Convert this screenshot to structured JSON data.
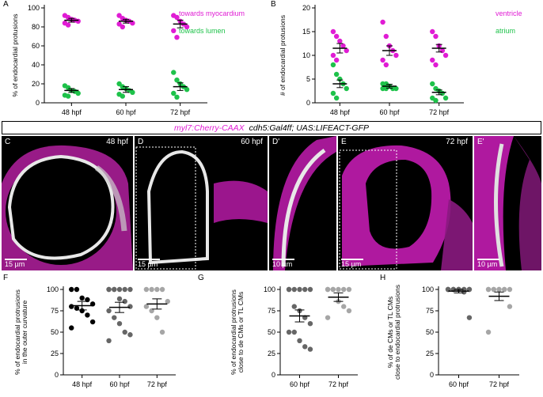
{
  "colors": {
    "magenta": "#e01cd4",
    "green": "#1ec24a",
    "black": "#000000",
    "dark_gray": "#666666",
    "light_gray": "#a6a6a6"
  },
  "microscopy": {
    "legend": {
      "part1": "myl7:Cherry-CAAX",
      "part2": "cdh5:Gal4ff; UAS:LIFEACT-GFP"
    },
    "panels": [
      {
        "label": "C",
        "time": "48 hpf",
        "scale": "15 µm"
      },
      {
        "label": "D",
        "time": "60 hpf",
        "scale": "15 µm"
      },
      {
        "label": "D'",
        "time": "",
        "scale": "10 µm"
      },
      {
        "label": "E",
        "time": "72 hpf",
        "scale": "15 µm"
      },
      {
        "label": "E'",
        "time": "",
        "scale": "10 µm"
      }
    ]
  },
  "chart_data": [
    {
      "panel": "A",
      "type": "scatter",
      "ylabel": "% of endocardial protusions",
      "ylim": [
        0,
        100
      ],
      "yticks": [
        0,
        20,
        40,
        60,
        80,
        100
      ],
      "categories": [
        "48 hpf",
        "60 hpf",
        "72 hpf"
      ],
      "legend_position": "top-right",
      "series": [
        {
          "name": "towards myocardium",
          "color": "#e01cd4",
          "mean": [
            87,
            86,
            83
          ],
          "sem": [
            2,
            2,
            4
          ],
          "points": [
            [
              92,
              90,
              88,
              87,
              86,
              84,
              82
            ],
            [
              92,
              89,
              87,
              86,
              84,
              83,
              80
            ],
            [
              92,
              90,
              86,
              83,
              80,
              76,
              69
            ]
          ]
        },
        {
          "name": "towards lumen",
          "color": "#1ec24a",
          "mean": [
            13,
            14,
            17
          ],
          "sem": [
            2,
            3,
            4
          ],
          "points": [
            [
              18,
              16,
              13,
              12,
              10,
              8,
              7
            ],
            [
              20,
              17,
              15,
              13,
              11,
              9,
              7
            ],
            [
              32,
              24,
              20,
              17,
              14,
              10,
              6
            ]
          ]
        }
      ]
    },
    {
      "panel": "B",
      "type": "scatter",
      "ylabel": "# of endocardial protusions",
      "ylim": [
        0,
        20
      ],
      "yticks": [
        0,
        5,
        10,
        15,
        20
      ],
      "categories": [
        "48 hpf",
        "60 hpf",
        "72 hpf"
      ],
      "legend_position": "top-right",
      "series": [
        {
          "name": "ventricle",
          "color": "#e01cd4",
          "mean": [
            11.5,
            11,
            11.5
          ],
          "sem": [
            1,
            1,
            0.8
          ],
          "points": [
            [
              15,
              14,
              13,
              12,
              11,
              10,
              9
            ],
            [
              17,
              14,
              12,
              11,
              10,
              9,
              8
            ],
            [
              15,
              14,
              12,
              11,
              10,
              9,
              8
            ]
          ]
        },
        {
          "name": "atrium",
          "color": "#1ec24a",
          "mean": [
            4,
            3.5,
            2.2
          ],
          "sem": [
            0.8,
            0.4,
            0.5
          ],
          "points": [
            [
              8,
              6,
              5,
              4,
              3,
              2,
              1
            ],
            [
              4,
              4,
              3.5,
              3,
              3,
              3,
              3
            ],
            [
              4,
              3,
              2.5,
              2,
              1,
              1,
              0.5
            ]
          ]
        }
      ]
    },
    {
      "panel": "F",
      "type": "scatter",
      "ylabel": "% of endocardial protrusions in the outer curvature",
      "ylim": [
        0,
        100
      ],
      "yticks": [
        0,
        25,
        50,
        75,
        100
      ],
      "categories": [
        "48 hpf",
        "60 hpf",
        "72 hpf"
      ],
      "colors": [
        "#000000",
        "#666666",
        "#a6a6a6"
      ],
      "mean": [
        81,
        79,
        83
      ],
      "sem": [
        5,
        6,
        6
      ],
      "points": [
        [
          100,
          100,
          90,
          88,
          83,
          80,
          78,
          75,
          70,
          62,
          55
        ],
        [
          100,
          100,
          100,
          100,
          100,
          100,
          100,
          89,
          86,
          80,
          75,
          67,
          60,
          50,
          47,
          40
        ],
        [
          100,
          100,
          100,
          100,
          86,
          80,
          75,
          67,
          50
        ]
      ]
    },
    {
      "panel": "G",
      "type": "scatter",
      "ylabel": "% of endocardial protrusions close to de CMs or TL CMs",
      "ylim": [
        0,
        100
      ],
      "yticks": [
        0,
        25,
        50,
        75,
        100
      ],
      "categories": [
        "60 hpf",
        "72 hpf"
      ],
      "colors": [
        "#666666",
        "#a6a6a6"
      ],
      "mean": [
        69,
        91
      ],
      "sem": [
        7,
        5
      ],
      "points": [
        [
          100,
          100,
          100,
          100,
          100,
          100,
          80,
          75,
          67,
          60,
          50,
          50,
          40,
          33,
          30
        ],
        [
          100,
          100,
          100,
          100,
          100,
          100,
          100,
          86,
          80,
          75,
          67
        ]
      ]
    },
    {
      "panel": "H",
      "type": "scatter",
      "ylabel": "% of de CMs or TL CMs close to endocardial protrusions",
      "ylim": [
        0,
        100
      ],
      "yticks": [
        0,
        25,
        50,
        75,
        100
      ],
      "categories": [
        "60 hpf",
        "72 hpf"
      ],
      "colors": [
        "#666666",
        "#a6a6a6"
      ],
      "mean": [
        98,
        92
      ],
      "sem": [
        2,
        5
      ],
      "points": [
        [
          100,
          100,
          100,
          100,
          100,
          100,
          100,
          100,
          100,
          100,
          100,
          100,
          100,
          97,
          67
        ],
        [
          100,
          100,
          100,
          100,
          100,
          100,
          100,
          100,
          100,
          80,
          50
        ]
      ]
    }
  ]
}
